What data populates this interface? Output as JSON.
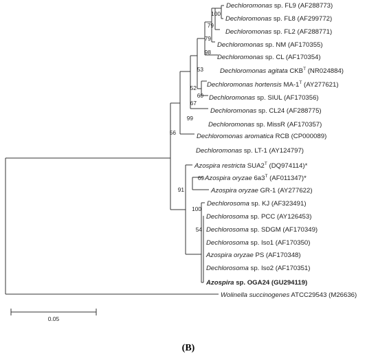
{
  "figure": {
    "panel_label": "(B)",
    "scale_bar_label": "0.05"
  },
  "taxa": [
    {
      "genus": "Dechloromonas",
      "rest": " sp. FL9 (AF288773)",
      "sup": ""
    },
    {
      "genus": "Dechloromonas",
      "rest": " sp. FL8 (AF299772)",
      "sup": ""
    },
    {
      "genus": "Dechloromonas",
      "rest": " sp. FL2 (AF288771)",
      "sup": ""
    },
    {
      "genus": "Dechloromonas",
      "rest": " sp. NM (AF170355)",
      "sup": ""
    },
    {
      "genus": "Dechloromonas",
      "rest": " sp. CL (AF170354)",
      "sup": ""
    },
    {
      "genus": "Dechloromonas agitata",
      "rest": " CKB",
      "sup": "T",
      "tail": " (NR024884)"
    },
    {
      "genus": "Dechloromonas hortensis",
      "rest": " MA-1",
      "sup": "T",
      "tail": " (AY277621)"
    },
    {
      "genus": "Dechloromonas",
      "rest": " sp. SIUL (AF170356)",
      "sup": ""
    },
    {
      "genus": "Dechloromonas",
      "rest": " sp. CL24 (AF288775)",
      "sup": ""
    },
    {
      "genus": "Dechloromonas",
      "rest": " sp. MissR (AF170357)",
      "sup": ""
    },
    {
      "genus": "Dechloromonas aromatica",
      "rest": " RCB (CP000089)",
      "sup": ""
    },
    {
      "genus": "Dechloromonas",
      "rest": " sp. LT-1 (AY124797)",
      "sup": ""
    },
    {
      "genus": "Azospira restricta",
      "rest": " SUA2",
      "sup": "T",
      "tail": " (DQ974114)*"
    },
    {
      "genus": "Azospira oryzae",
      "rest": " 6a3",
      "sup": "T",
      "tail": " (AF011347)*"
    },
    {
      "genus": "Azospira oryzae",
      "rest": " GR-1 (AY277622)",
      "sup": ""
    },
    {
      "genus": "Dechlorosoma",
      "rest": " sp. KJ (AF323491)",
      "sup": ""
    },
    {
      "genus": "Dechlorosoma",
      "rest": " sp. PCC (AY126453)",
      "sup": ""
    },
    {
      "genus": "Dechlorosoma",
      "rest": " sp. SDGM (AF170349)",
      "sup": ""
    },
    {
      "genus": "Dechlorosoma",
      "rest": " sp. Iso1 (AF170350)",
      "sup": ""
    },
    {
      "genus": "Azospira oryzae",
      "rest": " PS (AF170348)",
      "sup": ""
    },
    {
      "genus": "Dechlorosoma",
      "rest": " sp. Iso2 (AF170351)",
      "sup": ""
    },
    {
      "genus": "Azospira",
      "rest": " sp. OGA24 (GU294119)",
      "sup": "",
      "bold": true
    },
    {
      "genus": "Wolinella succinogenes",
      "rest": " ATCC29543 (M26636)",
      "sup": ""
    }
  ],
  "bootstrap": [
    "100",
    "79",
    "79",
    "98",
    "53",
    "52",
    "60",
    "67",
    "99",
    "56",
    "69",
    "91",
    "100",
    "54"
  ]
}
